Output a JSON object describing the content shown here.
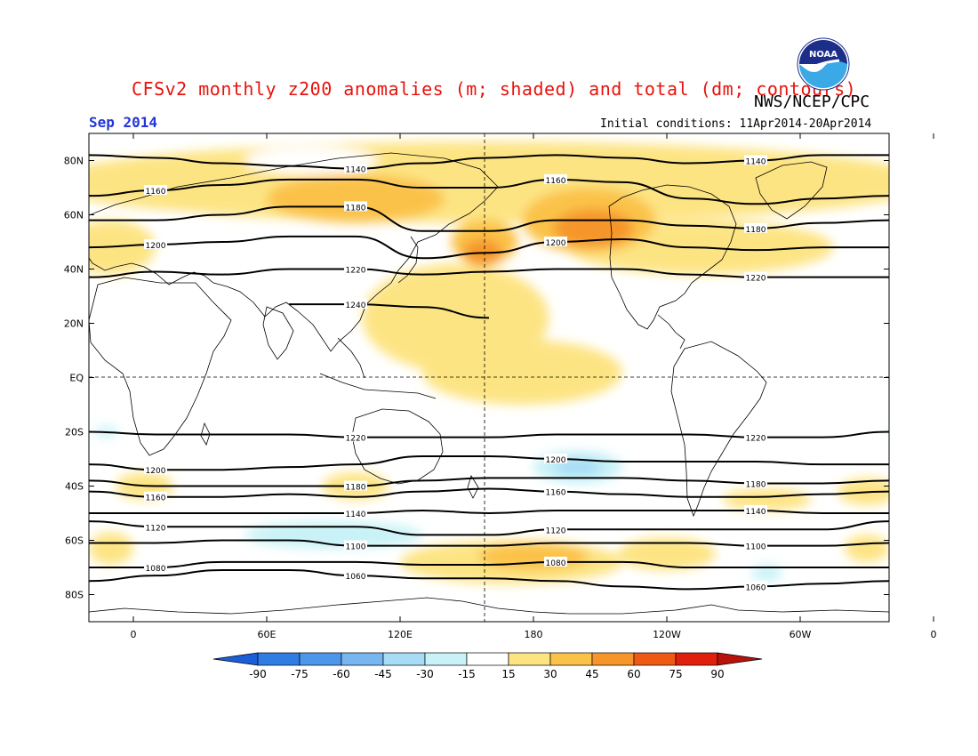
{
  "title": "CFSv2 monthly z200 anomalies (m; shaded) and total (dm; contours)",
  "agency": "NWS/NCEP/CPC",
  "logo_text": "NOAA",
  "month": "Sep 2014",
  "initial_conditions": "Initial conditions: 11Apr2014-20Apr2014",
  "lat_labels": [
    "80N",
    "60N",
    "40N",
    "20N",
    "EQ",
    "20S",
    "40S",
    "60S",
    "80S"
  ],
  "lon_labels": [
    "0",
    "60E",
    "120E",
    "180",
    "120W",
    "60W",
    "0"
  ],
  "colorbar": {
    "labels": [
      "-90",
      "-75",
      "-60",
      "-45",
      "-30",
      "-15",
      "15",
      "30",
      "45",
      "60",
      "75",
      "90"
    ],
    "colors": [
      "#1a5fd8",
      "#2f7de3",
      "#4d97ea",
      "#78b6f2",
      "#a6dcf6",
      "#c8f2f7",
      "#ffffff",
      "#fde483",
      "#fbc24a",
      "#f6962a",
      "#ee5a14",
      "#e0200c",
      "#b8120a"
    ]
  },
  "contours": [
    {
      "label": "1140",
      "y": [
        82,
        81,
        79,
        78,
        77,
        79,
        81,
        82,
        81,
        79,
        80,
        82,
        82
      ]
    },
    {
      "label": "1160",
      "y": [
        67,
        69,
        71,
        73,
        73,
        70,
        70,
        73,
        72,
        66,
        64,
        66,
        67
      ]
    },
    {
      "label": "1180",
      "y": [
        58,
        58,
        60,
        63,
        63,
        54,
        54,
        58,
        58,
        56,
        55,
        57,
        58
      ]
    },
    {
      "label": "1200",
      "y": [
        48,
        49,
        50,
        52,
        52,
        44,
        46,
        50,
        51,
        48,
        47,
        48,
        48
      ]
    },
    {
      "label": "1220",
      "y": [
        37,
        39,
        38,
        40,
        40,
        38,
        39,
        40,
        40,
        38,
        37,
        37,
        37
      ]
    },
    {
      "label": "1240",
      "y": [
        null,
        null,
        null,
        27,
        27,
        26,
        22,
        null,
        null,
        null,
        null,
        null,
        null
      ]
    },
    {
      "label": "1220",
      "y": [
        -20,
        -21,
        -21,
        -21,
        -22,
        -22,
        -22,
        -21,
        -21,
        -21,
        -22,
        -22,
        -20
      ]
    },
    {
      "label": "1200",
      "y": [
        -32,
        -34,
        -34,
        -33,
        -32,
        -29,
        -29,
        -30,
        -31,
        -31,
        -31,
        -32,
        -32
      ]
    },
    {
      "label": "1180",
      "y": [
        -38,
        -40,
        -40,
        -40,
        -40,
        -38,
        -37,
        -37,
        -37,
        -38,
        -39,
        -39,
        -38
      ]
    },
    {
      "label": "1160",
      "y": [
        -42,
        -44,
        -44,
        -43,
        -44,
        -42,
        -41,
        -42,
        -43,
        -44,
        -44,
        -43,
        -42
      ]
    },
    {
      "label": "1140",
      "y": [
        -50,
        -50,
        -50,
        -50,
        -50,
        -49,
        -50,
        -49,
        -49,
        -49,
        -49,
        -50,
        -50
      ]
    },
    {
      "label": "1120",
      "y": [
        -53,
        -55,
        -55,
        -55,
        -55,
        -58,
        -58,
        -56,
        -56,
        -56,
        -56,
        -56,
        -53
      ]
    },
    {
      "label": "1100",
      "y": [
        -61,
        -61,
        -60,
        -60,
        -62,
        -62,
        -62,
        -61,
        -61,
        -61,
        -62,
        -62,
        -61
      ]
    },
    {
      "label": "1080",
      "y": [
        -70,
        -70,
        -68,
        -68,
        -68,
        -69,
        -69,
        -68,
        -68,
        -70,
        -70,
        -70,
        -70
      ]
    },
    {
      "label": "1060",
      "y": [
        -75,
        -73,
        -71,
        -71,
        -73,
        -74,
        -74,
        -75,
        -77,
        -78,
        -77,
        -76,
        -75
      ]
    }
  ],
  "anomaly_blobs": [
    {
      "color": "#fde483",
      "lon": 160,
      "lat": 72,
      "rlon": 200,
      "rlat": 15
    },
    {
      "color": "#fde483",
      "lon": 145,
      "lat": 22,
      "rlon": 42,
      "rlat": 20
    },
    {
      "color": "#fde483",
      "lon": 175,
      "lat": 2,
      "rlon": 45,
      "rlat": 12
    },
    {
      "color": "#fde483",
      "lon": 255,
      "lat": 48,
      "rlon": 60,
      "rlat": 10
    },
    {
      "color": "#fde483",
      "lon": -10,
      "lat": 48,
      "rlon": 20,
      "rlat": 10
    },
    {
      "color": "#fbc24a",
      "lon": 100,
      "lat": 66,
      "rlon": 40,
      "rlat": 9
    },
    {
      "color": "#fbc24a",
      "lon": 205,
      "lat": 58,
      "rlon": 30,
      "rlat": 12
    },
    {
      "color": "#fbc24a",
      "lon": 158,
      "lat": 50,
      "rlon": 15,
      "rlat": 8
    },
    {
      "color": "#f6962a",
      "lon": 157,
      "lat": 46,
      "rlon": 9,
      "rlat": 5
    },
    {
      "color": "#f6962a",
      "lon": 207,
      "lat": 55,
      "rlon": 18,
      "rlat": 7
    },
    {
      "color": "#ffffff",
      "lon": 22,
      "lat": 56,
      "rlon": 10,
      "rlat": 4
    },
    {
      "color": "#ffffff",
      "lon": 80,
      "lat": 80,
      "rlon": 30,
      "rlat": 5
    },
    {
      "color": "#fde483",
      "lon": 170,
      "lat": -68,
      "rlon": 50,
      "rlat": 8
    },
    {
      "color": "#fbc24a",
      "lon": 180,
      "lat": -66,
      "rlon": 25,
      "rlat": 5
    },
    {
      "color": "#fde483",
      "lon": 240,
      "lat": -65,
      "rlon": 22,
      "rlat": 6
    },
    {
      "color": "#fde483",
      "lon": 100,
      "lat": -40,
      "rlon": 15,
      "rlat": 5
    },
    {
      "color": "#fde483",
      "lon": 5,
      "lat": -40,
      "rlon": 13,
      "rlat": 5
    },
    {
      "color": "#fde483",
      "lon": -10,
      "lat": -63,
      "rlon": 10,
      "rlat": 6
    },
    {
      "color": "#fde483",
      "lon": 285,
      "lat": -45,
      "rlon": 20,
      "rlat": 4
    },
    {
      "color": "#fde483",
      "lon": 330,
      "lat": -42,
      "rlon": 13,
      "rlat": 5
    },
    {
      "color": "#fde483",
      "lon": 330,
      "lat": -63,
      "rlon": 10,
      "rlat": 5
    },
    {
      "color": "#c8f2f7",
      "lon": 90,
      "lat": -58,
      "rlon": 40,
      "rlat": 5
    },
    {
      "color": "#c8f2f7",
      "lon": 200,
      "lat": -33,
      "rlon": 20,
      "rlat": 6
    },
    {
      "color": "#a6dcf6",
      "lon": 200,
      "lat": -33,
      "rlon": 11,
      "rlat": 3
    },
    {
      "color": "#c8f2f7",
      "lon": 285,
      "lat": -72,
      "rlon": 7,
      "rlat": 3
    },
    {
      "color": "#c8f2f7",
      "lon": -12,
      "lat": -20,
      "rlon": 5,
      "rlat": 2
    },
    {
      "color": "#c8f2f7",
      "lon": 345,
      "lat": -20,
      "rlon": 5,
      "rlat": 2
    }
  ]
}
